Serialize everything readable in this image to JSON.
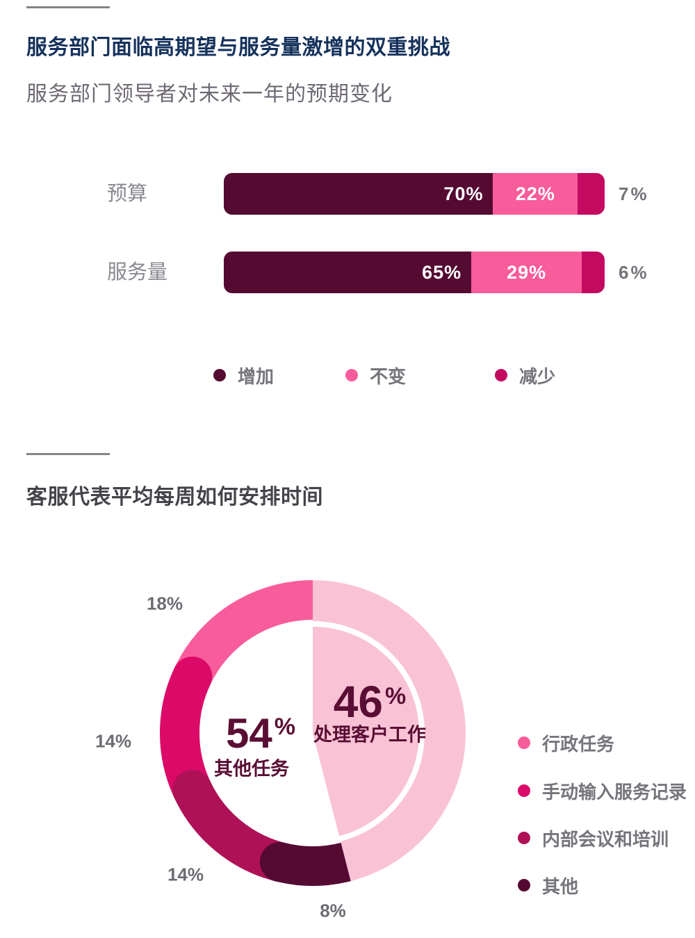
{
  "colors": {
    "navy": "#16325C",
    "maroon": "#550A32",
    "pink": "#F85C9B",
    "crimson": "#C30A60",
    "magenta": "#DB0A68",
    "dark_crimson": "#AE1156",
    "light_pink": "#F9C3D5",
    "white": "#FFFFFF",
    "gray_text": "#76747B",
    "gray_label": "#8A888F",
    "center_maroon": "#5A0E34"
  },
  "section1": {
    "title": "服务部门面临高期望与服务量激增的双重挑战",
    "subtitle": "服务部门领导者对未来一年的预期变化",
    "legend": [
      {
        "label": "增加",
        "color_key": "maroon"
      },
      {
        "label": "不变",
        "color_key": "pink"
      },
      {
        "label": "减少",
        "color_key": "crimson"
      }
    ]
  },
  "section2": {
    "title": "客服代表平均每周如何安排时间",
    "legend": [
      {
        "label": "行政任务",
        "color_key": "pink"
      },
      {
        "label": "手动输入服务记录",
        "color_key": "magenta"
      },
      {
        "label": "内部会议和培训",
        "color_key": "dark_crimson"
      },
      {
        "label": "其他",
        "color_key": "maroon"
      }
    ]
  },
  "chart_data": [
    {
      "type": "bar",
      "stacked": true,
      "orientation": "horizontal",
      "title": "服务部门领导者对未来一年的预期变化",
      "categories": [
        "预算",
        "服务量"
      ],
      "series": [
        {
          "name": "增加",
          "color_key": "maroon",
          "values": [
            70,
            65
          ],
          "label_position": "inside-right"
        },
        {
          "name": "不变",
          "color_key": "pink",
          "values": [
            22,
            29
          ],
          "label_position": "inside-center"
        },
        {
          "name": "减少",
          "color_key": "crimson",
          "values": [
            7,
            6
          ],
          "label_position": "outside"
        }
      ],
      "value_suffix": "%"
    },
    {
      "type": "pie",
      "title": "客服代表平均每周如何安排时间",
      "direction": "clockwise",
      "start_angle_deg": 0,
      "slices": [
        {
          "name": "处理客户工作",
          "value": 46,
          "color_key": "light_pink",
          "style": "sector",
          "center_label": {
            "value": "46",
            "suffix": "%",
            "label": "处理客户工作"
          }
        },
        {
          "name": "其他",
          "value": 8,
          "color_key": "maroon",
          "style": "ring",
          "outside_label": "8%"
        },
        {
          "name": "内部会议和培训",
          "value": 14,
          "color_key": "dark_crimson",
          "style": "ring",
          "outside_label": "14%"
        },
        {
          "name": "手动输入服务记录",
          "value": 14,
          "color_key": "magenta",
          "style": "ring",
          "outside_label": "14%"
        },
        {
          "name": "行政任务",
          "value": 18,
          "color_key": "pink",
          "style": "ring",
          "outside_label": "18%"
        }
      ],
      "center_label": {
        "value": "54",
        "suffix": "%",
        "label": "其他任务"
      }
    }
  ]
}
